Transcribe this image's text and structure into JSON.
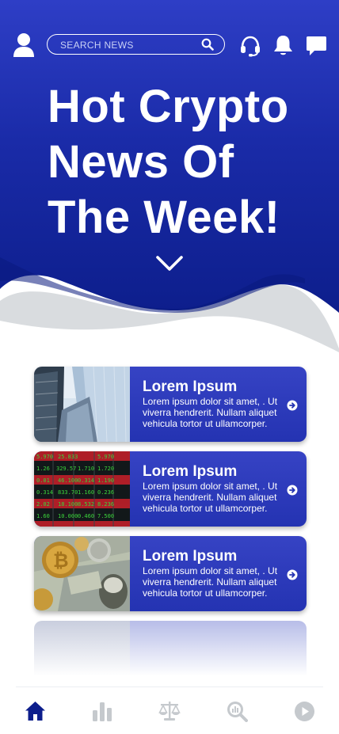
{
  "header": {
    "search_placeholder": "SEARCH NEWS",
    "icons": [
      "user-icon",
      "search-icon",
      "headset-icon",
      "bell-icon",
      "chat-icon"
    ]
  },
  "hero": {
    "title": "Hot Crypto News Of The Week!"
  },
  "news": [
    {
      "title": "Lorem Ipsum",
      "text": "Lorem ipsum dolor sit amet, . Ut viverra hendrerit. Nullam aliquet vehicula tortor ut ullamcorper.",
      "image": "skyscraper"
    },
    {
      "title": "Lorem Ipsum",
      "text": "Lorem ipsum dolor sit amet, . Ut viverra hendrerit. Nullam aliquet vehicula tortor ut ullamcorper.",
      "image": "stock-ticker"
    },
    {
      "title": "Lorem Ipsum",
      "text": "Lorem ipsum dolor sit amet, . Ut viverra hendrerit. Nullam aliquet vehicula tortor ut ullamcorper.",
      "image": "bitcoin-and-dollars"
    }
  ],
  "bottom_nav": {
    "items": [
      "home",
      "stats",
      "compare",
      "analysis",
      "play"
    ],
    "active": "home"
  },
  "colors": {
    "primary": "#1428a0",
    "primary_dark": "#0a1b85",
    "wave_gray": "#d9dcdf",
    "nav_inactive": "#c5c9cd"
  }
}
